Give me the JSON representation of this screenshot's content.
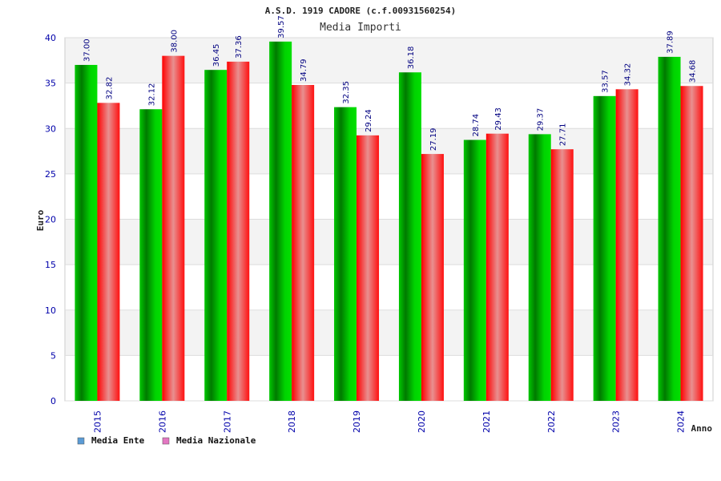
{
  "chart_data": {
    "type": "bar",
    "title": "A.S.D. 1919 CADORE (c.f.00931560254)",
    "subtitle": "Media Importi",
    "xlabel": "Anno",
    "ylabel": "Euro",
    "ylim": [
      0,
      40
    ],
    "yticks": [
      "0",
      "5",
      "10",
      "15",
      "20",
      "25",
      "30",
      "35",
      "40"
    ],
    "grid": true,
    "legend_position": "bottom-left",
    "categories": [
      "2015",
      "2016",
      "2017",
      "2018",
      "2019",
      "2020",
      "2021",
      "2022",
      "2023",
      "2024"
    ],
    "series": [
      {
        "name": "Media Ente",
        "values": [
          37.0,
          32.12,
          36.45,
          39.57,
          32.35,
          36.18,
          28.74,
          29.37,
          33.57,
          37.89
        ],
        "labels": [
          "37.00",
          "32.12",
          "36.45",
          "39.57",
          "32.35",
          "36.18",
          "28.74",
          "29.37",
          "33.57",
          "37.89"
        ],
        "color": "#00aa00",
        "legend_color": "#5b9bd5"
      },
      {
        "name": "Media Nazionale",
        "values": [
          32.82,
          38.0,
          37.36,
          34.79,
          29.24,
          27.19,
          29.43,
          27.71,
          34.32,
          34.68
        ],
        "labels": [
          "32.82",
          "38.00",
          "37.36",
          "34.79",
          "29.24",
          "27.19",
          "29.43",
          "27.71",
          "34.32",
          "34.68"
        ],
        "color": "#ee0000",
        "legend_color": "#e377c2"
      }
    ]
  }
}
